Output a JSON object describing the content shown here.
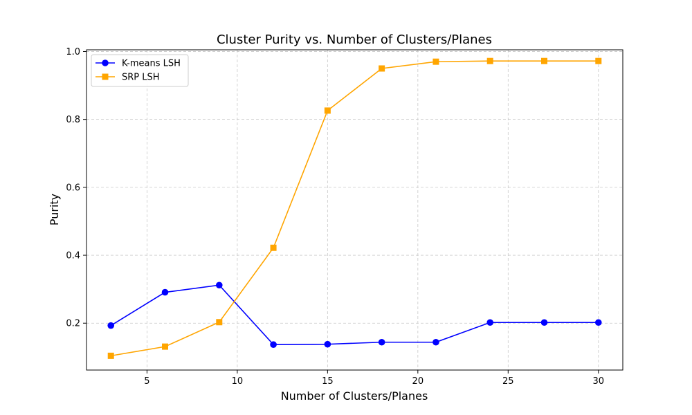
{
  "chart_data": {
    "type": "line",
    "title": "Cluster Purity vs. Number of Clusters/Planes",
    "xlabel": "Number of Clusters/Planes",
    "ylabel": "Purity",
    "xlim": [
      1.65,
      31.35
    ],
    "ylim": [
      0.062,
      1.005
    ],
    "xticks": [
      5,
      10,
      15,
      20,
      25,
      30
    ],
    "yticks": [
      0.2,
      0.4,
      0.6,
      0.8,
      1.0
    ],
    "xtick_labels": [
      "5",
      "10",
      "15",
      "20",
      "25",
      "30"
    ],
    "ytick_labels": [
      "0.2",
      "0.4",
      "0.6",
      "0.8",
      "1.0"
    ],
    "grid": true,
    "legend_position": "top-left",
    "x": [
      3,
      6,
      9,
      12,
      15,
      18,
      21,
      24,
      27,
      30
    ],
    "series": [
      {
        "name": "K-means LSH",
        "color": "#0000ff",
        "marker": "circle",
        "values": [
          0.193,
          0.291,
          0.312,
          0.137,
          0.138,
          0.144,
          0.144,
          0.202,
          0.202,
          0.202
        ]
      },
      {
        "name": "SRP LSH",
        "color": "#ffa500",
        "marker": "square",
        "values": [
          0.104,
          0.131,
          0.203,
          0.422,
          0.826,
          0.95,
          0.97,
          0.972,
          0.972,
          0.972
        ]
      }
    ]
  }
}
